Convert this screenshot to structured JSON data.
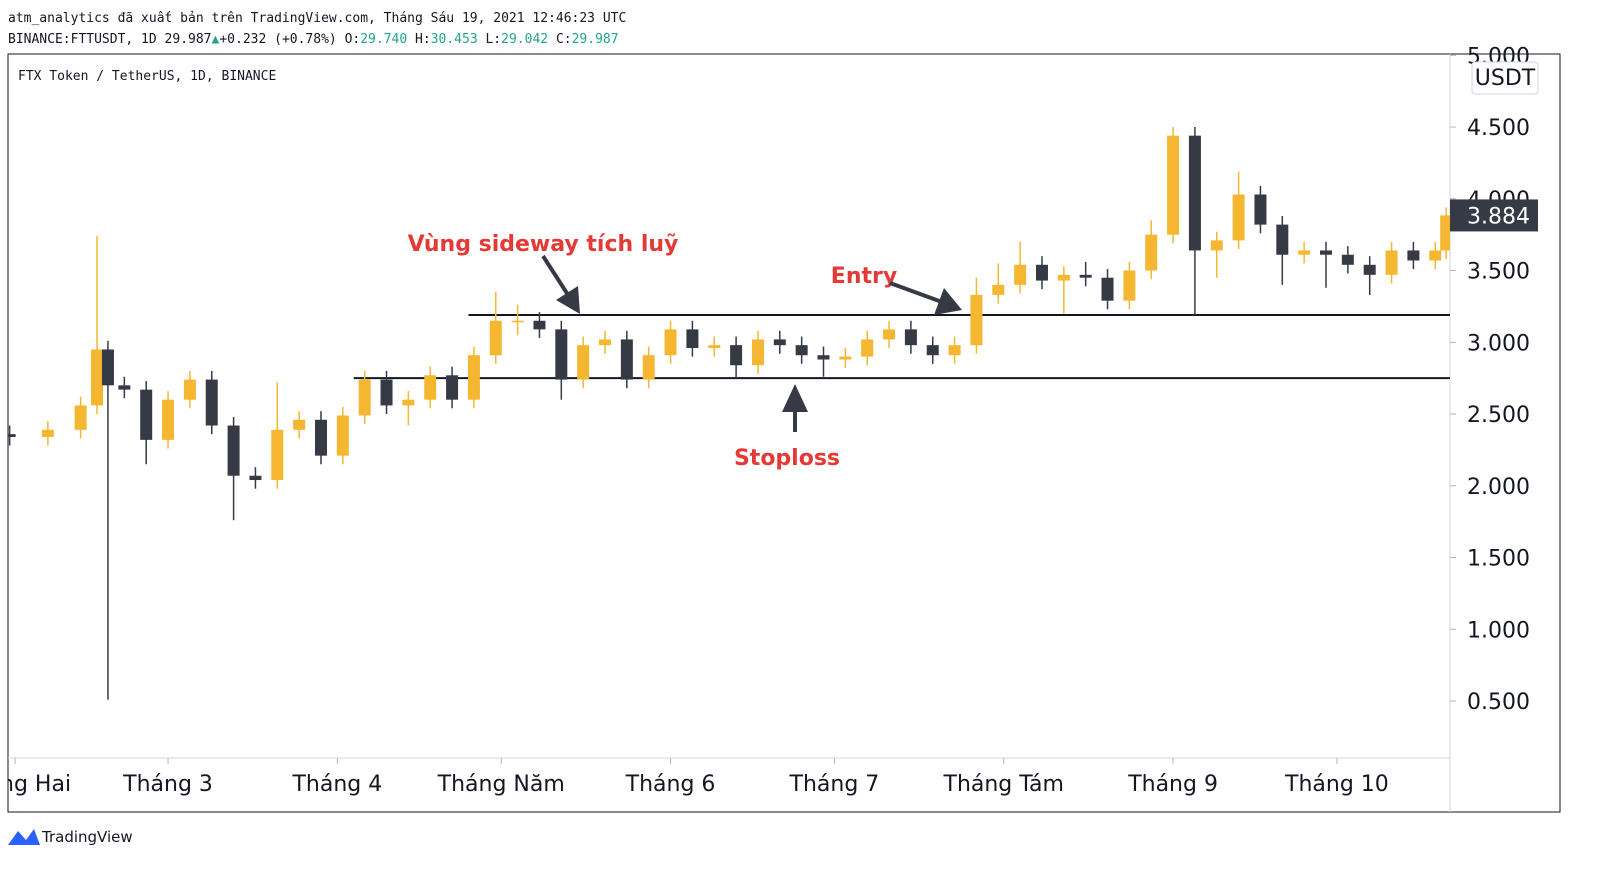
{
  "header": {
    "byline": "atm_analytics đã xuất bản trên TradingView.com, Tháng Sáu 19, 2021 12:46:23 UTC",
    "symbol": "BINANCE:FTTUSDT, 1D",
    "last": "29.987",
    "change": "+0.232 (+0.78%)",
    "ohlc": [
      {
        "label": "O:",
        "value": "29.740"
      },
      {
        "label": "H:",
        "value": "30.453"
      },
      {
        "label": "L:",
        "value": "29.042"
      },
      {
        "label": "C:",
        "value": "29.987"
      }
    ]
  },
  "chart_data": {
    "type": "candlestick",
    "legend_title": "FTX Token / TetherUS, 1D, BINANCE",
    "unit": "USDT",
    "up_color": "#f5b731",
    "down_color": "#363a45",
    "x": [
      31,
      38,
      44,
      47,
      49,
      52,
      56,
      60,
      64,
      68,
      72,
      76,
      80,
      84,
      88,
      92,
      96,
      100,
      104,
      108,
      112,
      116,
      120,
      124,
      128,
      132,
      136,
      140,
      144,
      148,
      152,
      156,
      160,
      164,
      168,
      172,
      176,
      180,
      184,
      188,
      192,
      196,
      200,
      204,
      208,
      212,
      216,
      220,
      224,
      228,
      232,
      236,
      240,
      244,
      248,
      252,
      256,
      260,
      264,
      268,
      272,
      276,
      280,
      284,
      288,
      292,
      294
    ],
    "open": [
      2.36,
      2.34,
      2.39,
      2.56,
      2.95,
      2.7,
      2.67,
      2.32,
      2.6,
      2.74,
      2.42,
      2.07,
      2.04,
      2.39,
      2.46,
      2.21,
      2.49,
      2.74,
      2.56,
      2.6,
      2.77,
      2.6,
      2.91,
      3.15,
      3.15,
      3.09,
      2.74,
      2.98,
      3.02,
      2.74,
      2.91,
      3.09,
      2.96,
      2.98,
      2.84,
      3.02,
      2.98,
      2.91,
      2.88,
      2.9,
      3.02,
      3.09,
      2.98,
      2.91,
      2.98,
      3.33,
      3.4,
      3.54,
      3.43,
      3.47,
      3.45,
      3.29,
      3.5,
      3.75,
      4.44,
      3.64,
      3.71,
      4.03,
      3.82,
      3.61,
      3.64,
      3.61,
      3.54,
      3.47,
      3.64,
      3.57,
      3.64
    ],
    "high": [
      2.42,
      2.45,
      2.62,
      3.74,
      3.01,
      2.76,
      2.73,
      2.66,
      2.8,
      2.8,
      2.48,
      2.13,
      2.72,
      2.52,
      2.52,
      2.55,
      2.8,
      2.8,
      2.66,
      2.83,
      2.83,
      2.97,
      3.35,
      3.26,
      3.21,
      3.15,
      3.04,
      3.08,
      3.08,
      2.97,
      3.15,
      3.15,
      3.04,
      3.04,
      3.08,
      3.08,
      3.04,
      2.97,
      2.96,
      3.08,
      3.15,
      3.15,
      3.04,
      3.04,
      3.45,
      3.55,
      3.7,
      3.6,
      3.53,
      3.56,
      3.51,
      3.56,
      3.85,
      4.5,
      4.5,
      3.77,
      4.19,
      4.09,
      3.88,
      3.7,
      3.7,
      3.67,
      3.6,
      3.7,
      3.7,
      3.7,
      3.94
    ],
    "low": [
      2.28,
      2.28,
      2.33,
      2.5,
      0.51,
      2.61,
      2.15,
      2.26,
      2.54,
      2.36,
      1.76,
      1.98,
      1.98,
      2.33,
      2.15,
      2.15,
      2.43,
      2.5,
      2.42,
      2.54,
      2.54,
      2.54,
      2.85,
      3.05,
      3.03,
      2.6,
      2.68,
      2.92,
      2.68,
      2.68,
      2.85,
      2.9,
      2.9,
      2.75,
      2.78,
      2.92,
      2.85,
      2.76,
      2.82,
      2.84,
      2.96,
      2.92,
      2.85,
      2.85,
      2.92,
      3.27,
      3.34,
      3.37,
      3.2,
      3.39,
      3.23,
      3.23,
      3.44,
      3.69,
      3.19,
      3.45,
      3.65,
      3.76,
      3.4,
      3.55,
      3.38,
      3.48,
      3.33,
      3.41,
      3.51,
      3.51,
      3.58
    ],
    "close": [
      2.34,
      2.39,
      2.56,
      2.95,
      2.7,
      2.67,
      2.32,
      2.6,
      2.74,
      2.42,
      2.07,
      2.04,
      2.39,
      2.46,
      2.21,
      2.49,
      2.74,
      2.56,
      2.6,
      2.77,
      2.6,
      2.91,
      3.15,
      3.15,
      3.09,
      2.74,
      2.98,
      3.02,
      2.74,
      2.91,
      3.09,
      2.96,
      2.98,
      2.84,
      3.02,
      2.98,
      2.91,
      2.88,
      2.9,
      3.02,
      3.09,
      2.98,
      2.91,
      2.98,
      3.33,
      3.4,
      3.54,
      3.43,
      3.47,
      3.45,
      3.29,
      3.5,
      3.75,
      4.44,
      3.64,
      3.71,
      4.03,
      3.82,
      3.61,
      3.64,
      3.61,
      3.54,
      3.47,
      3.64,
      3.57,
      3.64,
      3.884
    ],
    "xlim": [
      30.7,
      294.7
    ],
    "xticks": [
      {
        "value": 32,
        "label": "Tháng Hai"
      },
      {
        "value": 60,
        "label": "Tháng 3"
      },
      {
        "value": 91,
        "label": "Tháng 4"
      },
      {
        "value": 121,
        "label": "Tháng Năm"
      },
      {
        "value": 152,
        "label": "Tháng 6"
      },
      {
        "value": 182,
        "label": "Tháng 7"
      },
      {
        "value": 213,
        "label": "Tháng Tám"
      },
      {
        "value": 244,
        "label": "Tháng 9"
      },
      {
        "value": 274,
        "label": "Tháng 10"
      }
    ],
    "ylim": [
      0.103,
      5.009
    ],
    "yticks": [
      {
        "value": 0.5,
        "label": "0.500"
      },
      {
        "value": 1,
        "label": "1.000"
      },
      {
        "value": 1.5,
        "label": "1.500"
      },
      {
        "value": 2,
        "label": "2.000"
      },
      {
        "value": 2.5,
        "label": "2.500"
      },
      {
        "value": 3,
        "label": "3.000"
      },
      {
        "value": 3.5,
        "label": "3.500"
      },
      {
        "value": 4,
        "label": "4.000"
      },
      {
        "value": 4.5,
        "label": "4.500"
      },
      {
        "value": 5,
        "label": "5.000"
      }
    ],
    "hlines": [
      {
        "value": 3.19,
        "from": 115
      },
      {
        "value": 2.75,
        "from": 94
      }
    ],
    "annotations": [
      "Vùng sideway tích luỹ",
      "Entry",
      "Stoploss"
    ]
  },
  "footer": {
    "brand": "TradingView"
  }
}
